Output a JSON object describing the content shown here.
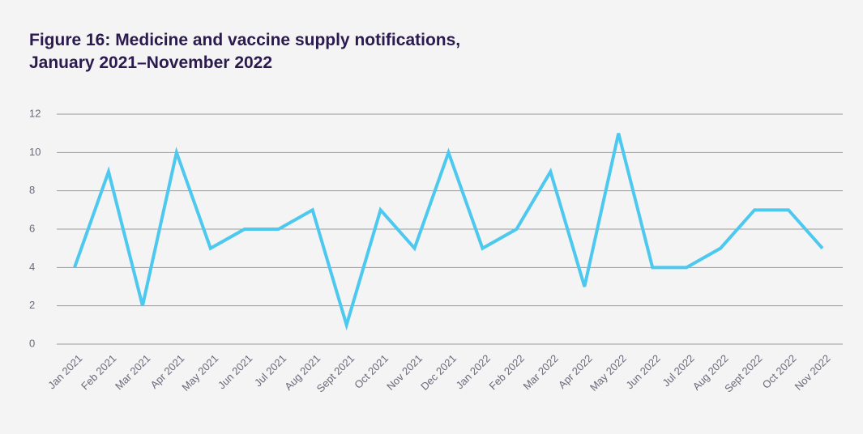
{
  "chart_data": {
    "type": "line",
    "title": "Figure 16: Medicine and vaccine supply notifications,\nJanuary 2021–November 2022",
    "categories": [
      "Jan 2021",
      "Feb 2021",
      "Mar 2021",
      "Apr 2021",
      "May 2021",
      "Jun 2021",
      "Jul 2021",
      "Aug 2021",
      "Sept 2021",
      "Oct 2021",
      "Nov 2021",
      "Dec 2021",
      "Jan 2022",
      "Feb 2022",
      "Mar 2022",
      "Apr 2022",
      "May 2022",
      "Jun 2022",
      "Jul 2022",
      "Aug 2022",
      "Sept 2022",
      "Oct 2022",
      "Nov 2022"
    ],
    "values": [
      4,
      9,
      2,
      10,
      5,
      6,
      6,
      7,
      1,
      7,
      5,
      10,
      5,
      6,
      9,
      3,
      11,
      4,
      4,
      5,
      7,
      7,
      5
    ],
    "color": "#4dc8ef",
    "ylim": [
      0,
      12
    ],
    "yticks": [
      0,
      2,
      4,
      6,
      8,
      10,
      12
    ],
    "grid": true
  }
}
